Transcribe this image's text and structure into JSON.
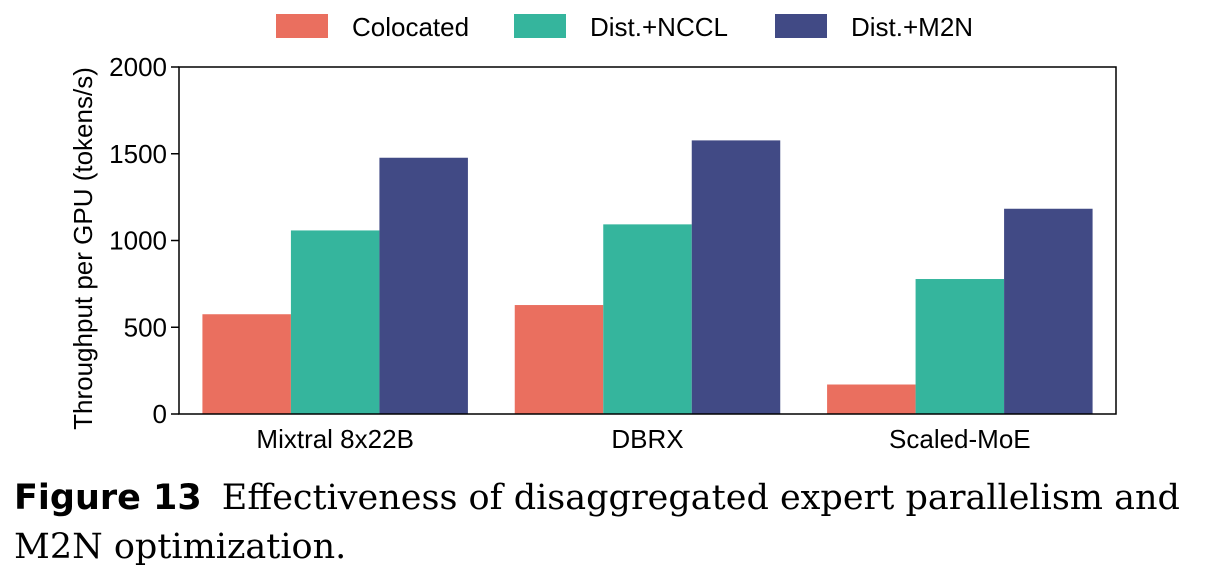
{
  "chart_data": {
    "type": "bar",
    "title": "",
    "xlabel": "",
    "ylabel": "Throughput per GPU (tokens/s)",
    "categories": [
      "Mixtral 8x22B",
      "DBRX",
      "Scaled-MoE"
    ],
    "series": [
      {
        "name": "Colocated",
        "color": "#EA6F5F",
        "values": [
          575,
          628,
          170
        ]
      },
      {
        "name": "Dist.+NCCL",
        "color": "#35B59D",
        "values": [
          1058,
          1093,
          778
        ]
      },
      {
        "name": "Dist.+M2N",
        "color": "#414A85",
        "values": [
          1477,
          1577,
          1183
        ]
      }
    ],
    "ylim": [
      0,
      2000
    ],
    "yticks": [
      0,
      500,
      1000,
      1500,
      2000
    ],
    "grid": false,
    "legend_position": "top"
  },
  "caption": {
    "label": "Figure 13",
    "text": "Effectiveness of disaggregated expert parallelism and M2N optimization."
  }
}
